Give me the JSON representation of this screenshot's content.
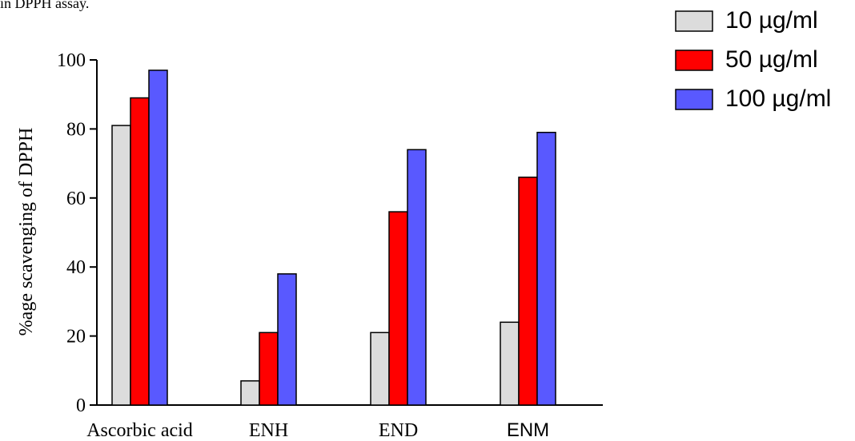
{
  "caption_fragment": "in DPPH assay.",
  "chart_data": {
    "type": "bar",
    "categories": [
      "Ascorbic acid",
      "ENH",
      "END",
      "ENM"
    ],
    "series": [
      {
        "name": "10 µg/ml",
        "values": [
          81,
          7,
          21,
          24
        ],
        "color": "#dcdcdc"
      },
      {
        "name": "50 µg/ml",
        "values": [
          89,
          21,
          56,
          66
        ],
        "color": "#ff0000"
      },
      {
        "name": "100 µg/ml",
        "values": [
          97,
          38,
          74,
          79
        ],
        "color": "#5959ff"
      }
    ],
    "ylabel": "%age scavenging of DPPH",
    "ylim": [
      0,
      100
    ],
    "yticks": [
      0,
      20,
      40,
      60,
      80,
      100
    ],
    "legend_position": "top-right",
    "grid": false
  }
}
